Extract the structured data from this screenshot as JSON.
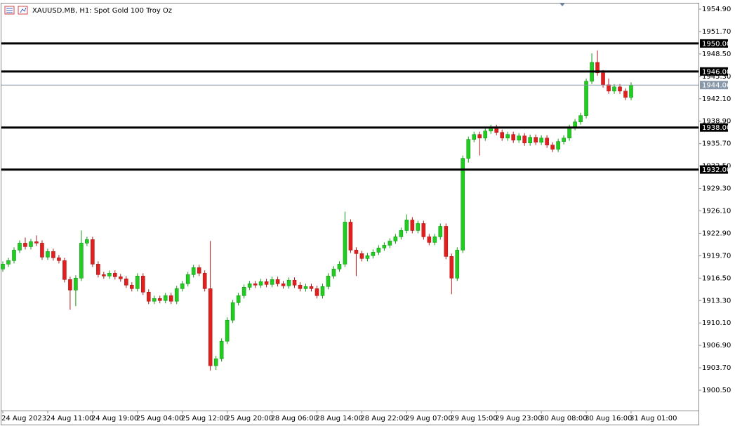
{
  "chart_data": {
    "type": "candlestick",
    "title": "XAUUSD.MB, H1:  Spot Gold 100 Troy Oz",
    "categories": [
      "24 Aug 2023",
      null,
      null,
      null,
      null,
      null,
      null,
      null,
      "24 Aug 11:00",
      null,
      null,
      null,
      null,
      null,
      null,
      null,
      "24 Aug 19:00",
      null,
      null,
      null,
      null,
      null,
      null,
      null,
      "25 Aug 04:00",
      null,
      null,
      null,
      null,
      null,
      null,
      null,
      "25 Aug 12:00",
      null,
      null,
      null,
      null,
      null,
      null,
      null,
      "25 Aug 20:00",
      null,
      null,
      null,
      null,
      null,
      null,
      null,
      "28 Aug 06:00",
      null,
      null,
      null,
      null,
      null,
      null,
      null,
      "28 Aug 14:00",
      null,
      null,
      null,
      null,
      null,
      null,
      null,
      "28 Aug 22:00",
      null,
      null,
      null,
      null,
      null,
      null,
      null,
      "29 Aug 07:00",
      null,
      null,
      null,
      null,
      null,
      null,
      null,
      "29 Aug 15:00",
      null,
      null,
      null,
      null,
      null,
      null,
      null,
      "29 Aug 23:00",
      null,
      null,
      null,
      null,
      null,
      null,
      null,
      "30 Aug 08:00",
      null,
      null,
      null,
      null,
      null,
      null,
      null,
      "30 Aug 16:00",
      null,
      null,
      null,
      null,
      null,
      null,
      null,
      "31 Aug 01:00"
    ],
    "open": [
      1917.8,
      1918.5,
      1919.0,
      1920.5,
      1921.5,
      1921.0,
      1921.7,
      1921.5,
      1919.5,
      1920.3,
      1919.4,
      1919.0,
      1916.3,
      1914.8,
      1916.5,
      1921.5,
      1922.0,
      1918.5,
      1917.0,
      1916.8,
      1917.2,
      1916.7,
      1916.4,
      1915.5,
      1915.0,
      1916.8,
      1914.5,
      1913.2,
      1913.6,
      1913.3,
      1914.0,
      1913.2,
      1915.0,
      1915.7,
      1917.0,
      1918.0,
      1917.2,
      1915.0,
      1904.0,
      1905.0,
      1907.5,
      1910.5,
      1913.0,
      1914.0,
      1915.2,
      1915.7,
      1915.5,
      1916.0,
      1915.6,
      1916.3,
      1915.7,
      1915.4,
      1916.2,
      1915.5,
      1915.0,
      1915.3,
      1915.0,
      1914.0,
      1915.3,
      1916.8,
      1917.8,
      1918.5,
      1924.5,
      1920.5,
      1920.0,
      1919.3,
      1919.7,
      1920.2,
      1920.8,
      1921.2,
      1921.8,
      1922.4,
      1923.3,
      1924.8,
      1923.3,
      1924.3,
      1922.4,
      1921.6,
      1922.4,
      1923.9,
      1919.6,
      1916.5,
      1920.5,
      1933.6,
      1936.3,
      1937.0,
      1936.5,
      1937.5,
      1938.0,
      1937.3,
      1936.5,
      1937.0,
      1936.2,
      1936.8,
      1935.8,
      1936.6,
      1935.9,
      1936.5,
      1935.5,
      1934.9,
      1936.0,
      1936.5,
      1938.0,
      1938.8,
      1939.7,
      1944.6,
      1947.3,
      1945.8,
      1944.1,
      1943.2,
      1943.8,
      1943.2,
      1942.3
    ],
    "high": [
      1918.9,
      1919.4,
      1920.9,
      1921.9,
      1922.3,
      1922.1,
      1922.6,
      1921.9,
      1920.7,
      1920.7,
      1919.8,
      1919.4,
      1916.7,
      1916.9,
      1923.3,
      1922.4,
      1922.4,
      1918.9,
      1917.4,
      1917.6,
      1917.6,
      1917.1,
      1916.8,
      1915.9,
      1917.2,
      1917.2,
      1914.9,
      1914.0,
      1914.0,
      1914.4,
      1914.4,
      1915.4,
      1916.1,
      1917.4,
      1918.4,
      1918.4,
      1917.6,
      1921.8,
      1905.4,
      1907.9,
      1910.9,
      1913.4,
      1914.4,
      1915.6,
      1916.1,
      1916.1,
      1916.4,
      1916.4,
      1916.7,
      1916.7,
      1916.1,
      1916.6,
      1916.6,
      1915.9,
      1915.7,
      1915.7,
      1915.4,
      1915.7,
      1917.2,
      1918.2,
      1918.9,
      1926.0,
      1924.9,
      1920.9,
      1920.4,
      1920.1,
      1920.6,
      1921.2,
      1921.6,
      1922.2,
      1922.8,
      1923.7,
      1925.6,
      1925.2,
      1924.7,
      1924.7,
      1922.8,
      1922.8,
      1924.3,
      1924.3,
      1920.0,
      1920.9,
      1934.0,
      1936.7,
      1937.4,
      1937.4,
      1937.9,
      1938.4,
      1938.4,
      1937.7,
      1937.4,
      1937.4,
      1937.2,
      1937.2,
      1937.0,
      1937.0,
      1936.9,
      1936.9,
      1935.9,
      1936.4,
      1936.9,
      1938.4,
      1939.2,
      1940.1,
      1945.0,
      1948.6,
      1949.0,
      1946.2,
      1945.0,
      1944.2,
      1944.2,
      1943.6,
      1944.46
    ],
    "low": [
      1917.4,
      1918.1,
      1918.6,
      1920.1,
      1920.6,
      1920.6,
      1921.1,
      1919.1,
      1919.1,
      1919.0,
      1918.6,
      1915.9,
      1912.0,
      1912.5,
      1916.1,
      1921.1,
      1918.1,
      1916.6,
      1916.4,
      1916.4,
      1916.3,
      1916.0,
      1915.1,
      1914.6,
      1914.6,
      1914.1,
      1912.8,
      1912.8,
      1912.9,
      1912.9,
      1912.8,
      1912.8,
      1914.6,
      1915.3,
      1916.6,
      1916.8,
      1914.6,
      1903.3,
      1903.4,
      1904.6,
      1907.1,
      1910.1,
      1912.6,
      1913.6,
      1914.8,
      1915.1,
      1915.1,
      1915.2,
      1915.2,
      1915.3,
      1915.0,
      1915.0,
      1915.1,
      1914.6,
      1914.6,
      1914.6,
      1913.6,
      1913.6,
      1914.9,
      1916.4,
      1917.4,
      1918.1,
      1920.1,
      1916.8,
      1918.9,
      1918.9,
      1919.3,
      1919.8,
      1920.4,
      1920.8,
      1921.4,
      1922.0,
      1922.9,
      1922.9,
      1922.9,
      1922.0,
      1921.2,
      1921.2,
      1922.0,
      1919.2,
      1914.2,
      1916.1,
      1920.1,
      1933.0,
      1935.9,
      1934.0,
      1936.1,
      1937.1,
      1936.9,
      1936.1,
      1936.1,
      1935.8,
      1935.8,
      1935.4,
      1935.4,
      1935.5,
      1935.5,
      1935.1,
      1934.5,
      1934.5,
      1935.6,
      1936.1,
      1937.6,
      1938.4,
      1939.3,
      1944.2,
      1945.4,
      1943.7,
      1942.8,
      1942.8,
      1942.8,
      1941.9,
      1941.9
    ],
    "close": [
      1918.5,
      1919.0,
      1920.5,
      1921.5,
      1921.0,
      1921.7,
      1921.5,
      1919.5,
      1920.3,
      1919.4,
      1919.0,
      1916.3,
      1914.8,
      1916.5,
      1921.5,
      1922.0,
      1918.5,
      1917.0,
      1916.8,
      1917.2,
      1916.7,
      1916.4,
      1915.5,
      1915.0,
      1916.8,
      1914.5,
      1913.2,
      1913.6,
      1913.3,
      1914.0,
      1913.2,
      1915.0,
      1915.7,
      1917.0,
      1918.0,
      1917.2,
      1915.0,
      1904.0,
      1905.0,
      1907.5,
      1910.5,
      1913.0,
      1914.0,
      1915.2,
      1915.7,
      1915.5,
      1916.0,
      1915.6,
      1916.3,
      1915.7,
      1915.4,
      1916.2,
      1915.5,
      1915.0,
      1915.3,
      1915.0,
      1914.0,
      1915.3,
      1916.8,
      1917.8,
      1918.5,
      1924.5,
      1920.5,
      1920.0,
      1919.3,
      1919.7,
      1920.2,
      1920.8,
      1921.2,
      1921.8,
      1922.4,
      1923.3,
      1924.8,
      1923.3,
      1924.3,
      1922.4,
      1921.6,
      1922.4,
      1923.9,
      1919.6,
      1916.5,
      1920.5,
      1933.6,
      1936.3,
      1937.0,
      1936.5,
      1937.5,
      1938.0,
      1937.3,
      1936.5,
      1937.0,
      1936.2,
      1936.8,
      1935.8,
      1936.6,
      1935.9,
      1936.5,
      1935.5,
      1934.9,
      1936.0,
      1936.5,
      1938.0,
      1938.8,
      1939.7,
      1944.6,
      1947.3,
      1945.8,
      1944.1,
      1943.2,
      1943.8,
      1943.2,
      1942.3,
      1944.06
    ],
    "up_color": "#22cc22",
    "down_color": "#e0201e",
    "ylim": [
      1897.6,
      1955.8
    ],
    "yticks": [
      {
        "value": 1954.9,
        "label": "1954.90"
      },
      {
        "value": 1951.7,
        "label": "1951.70"
      },
      {
        "value": 1948.5,
        "label": "1948.50"
      },
      {
        "value": 1945.3,
        "label": "1945.30"
      },
      {
        "value": 1942.1,
        "label": "1942.10"
      },
      {
        "value": 1938.9,
        "label": "1938.90"
      },
      {
        "value": 1935.7,
        "label": "1935.70"
      },
      {
        "value": 1932.5,
        "label": "1932.50"
      },
      {
        "value": 1929.3,
        "label": "1929.30"
      },
      {
        "value": 1926.1,
        "label": "1926.10"
      },
      {
        "value": 1922.9,
        "label": "1922.90"
      },
      {
        "value": 1919.7,
        "label": "1919.70"
      },
      {
        "value": 1916.5,
        "label": "1916.50"
      },
      {
        "value": 1913.3,
        "label": "1913.30"
      },
      {
        "value": 1910.1,
        "label": "1910.10"
      },
      {
        "value": 1906.9,
        "label": "1906.90"
      },
      {
        "value": 1903.7,
        "label": "1903.70"
      },
      {
        "value": 1900.5,
        "label": "1900.50"
      }
    ],
    "levels": [
      {
        "value": 1950,
        "label": "1950.00"
      },
      {
        "value": 1946,
        "label": "1946.00"
      },
      {
        "value": 1938,
        "label": "1938.00"
      },
      {
        "value": 1932,
        "label": "1932.00"
      }
    ],
    "current_price": 1944.06
  }
}
